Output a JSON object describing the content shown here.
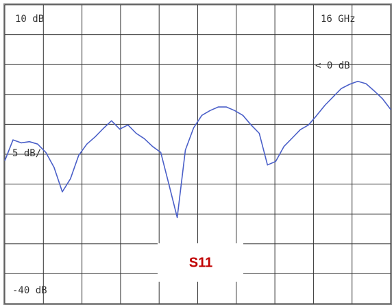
{
  "chart_data": {
    "type": "line",
    "trace_name": "S11",
    "stop_label": "16 GHz",
    "reference_label": "< 0 dB",
    "scale": {
      "value": 5,
      "label": "5 dB/"
    },
    "ylim": [
      -40,
      10
    ],
    "yticks": [
      {
        "value": 10,
        "label": "10 dB"
      },
      {
        "value": -40,
        "label": "-40 dB"
      }
    ],
    "xdivisions": 10,
    "grid": true,
    "color": "#4a5fc8",
    "reference_color": "#c0504d",
    "values": [
      -16.1,
      -12.6,
      -13.1,
      -12.9,
      -13.3,
      -14.7,
      -17.2,
      -21.3,
      -19.1,
      -15.2,
      -13.3,
      -12.1,
      -10.7,
      -9.4,
      -10.8,
      -10.1,
      -11.5,
      -12.4,
      -13.7,
      -14.7,
      -20.1,
      -25.6,
      -14.3,
      -10.6,
      -8.5,
      -7.7,
      -7.1,
      -7.1,
      -7.7,
      -8.5,
      -10.1,
      -11.5,
      -16.8,
      -16.2,
      -13.7,
      -12.3,
      -10.9,
      -10.1,
      -8.5,
      -6.8,
      -5.4,
      -4.0,
      -3.3,
      -2.8,
      -3.2,
      -4.4,
      -5.7,
      -7.5
    ]
  }
}
